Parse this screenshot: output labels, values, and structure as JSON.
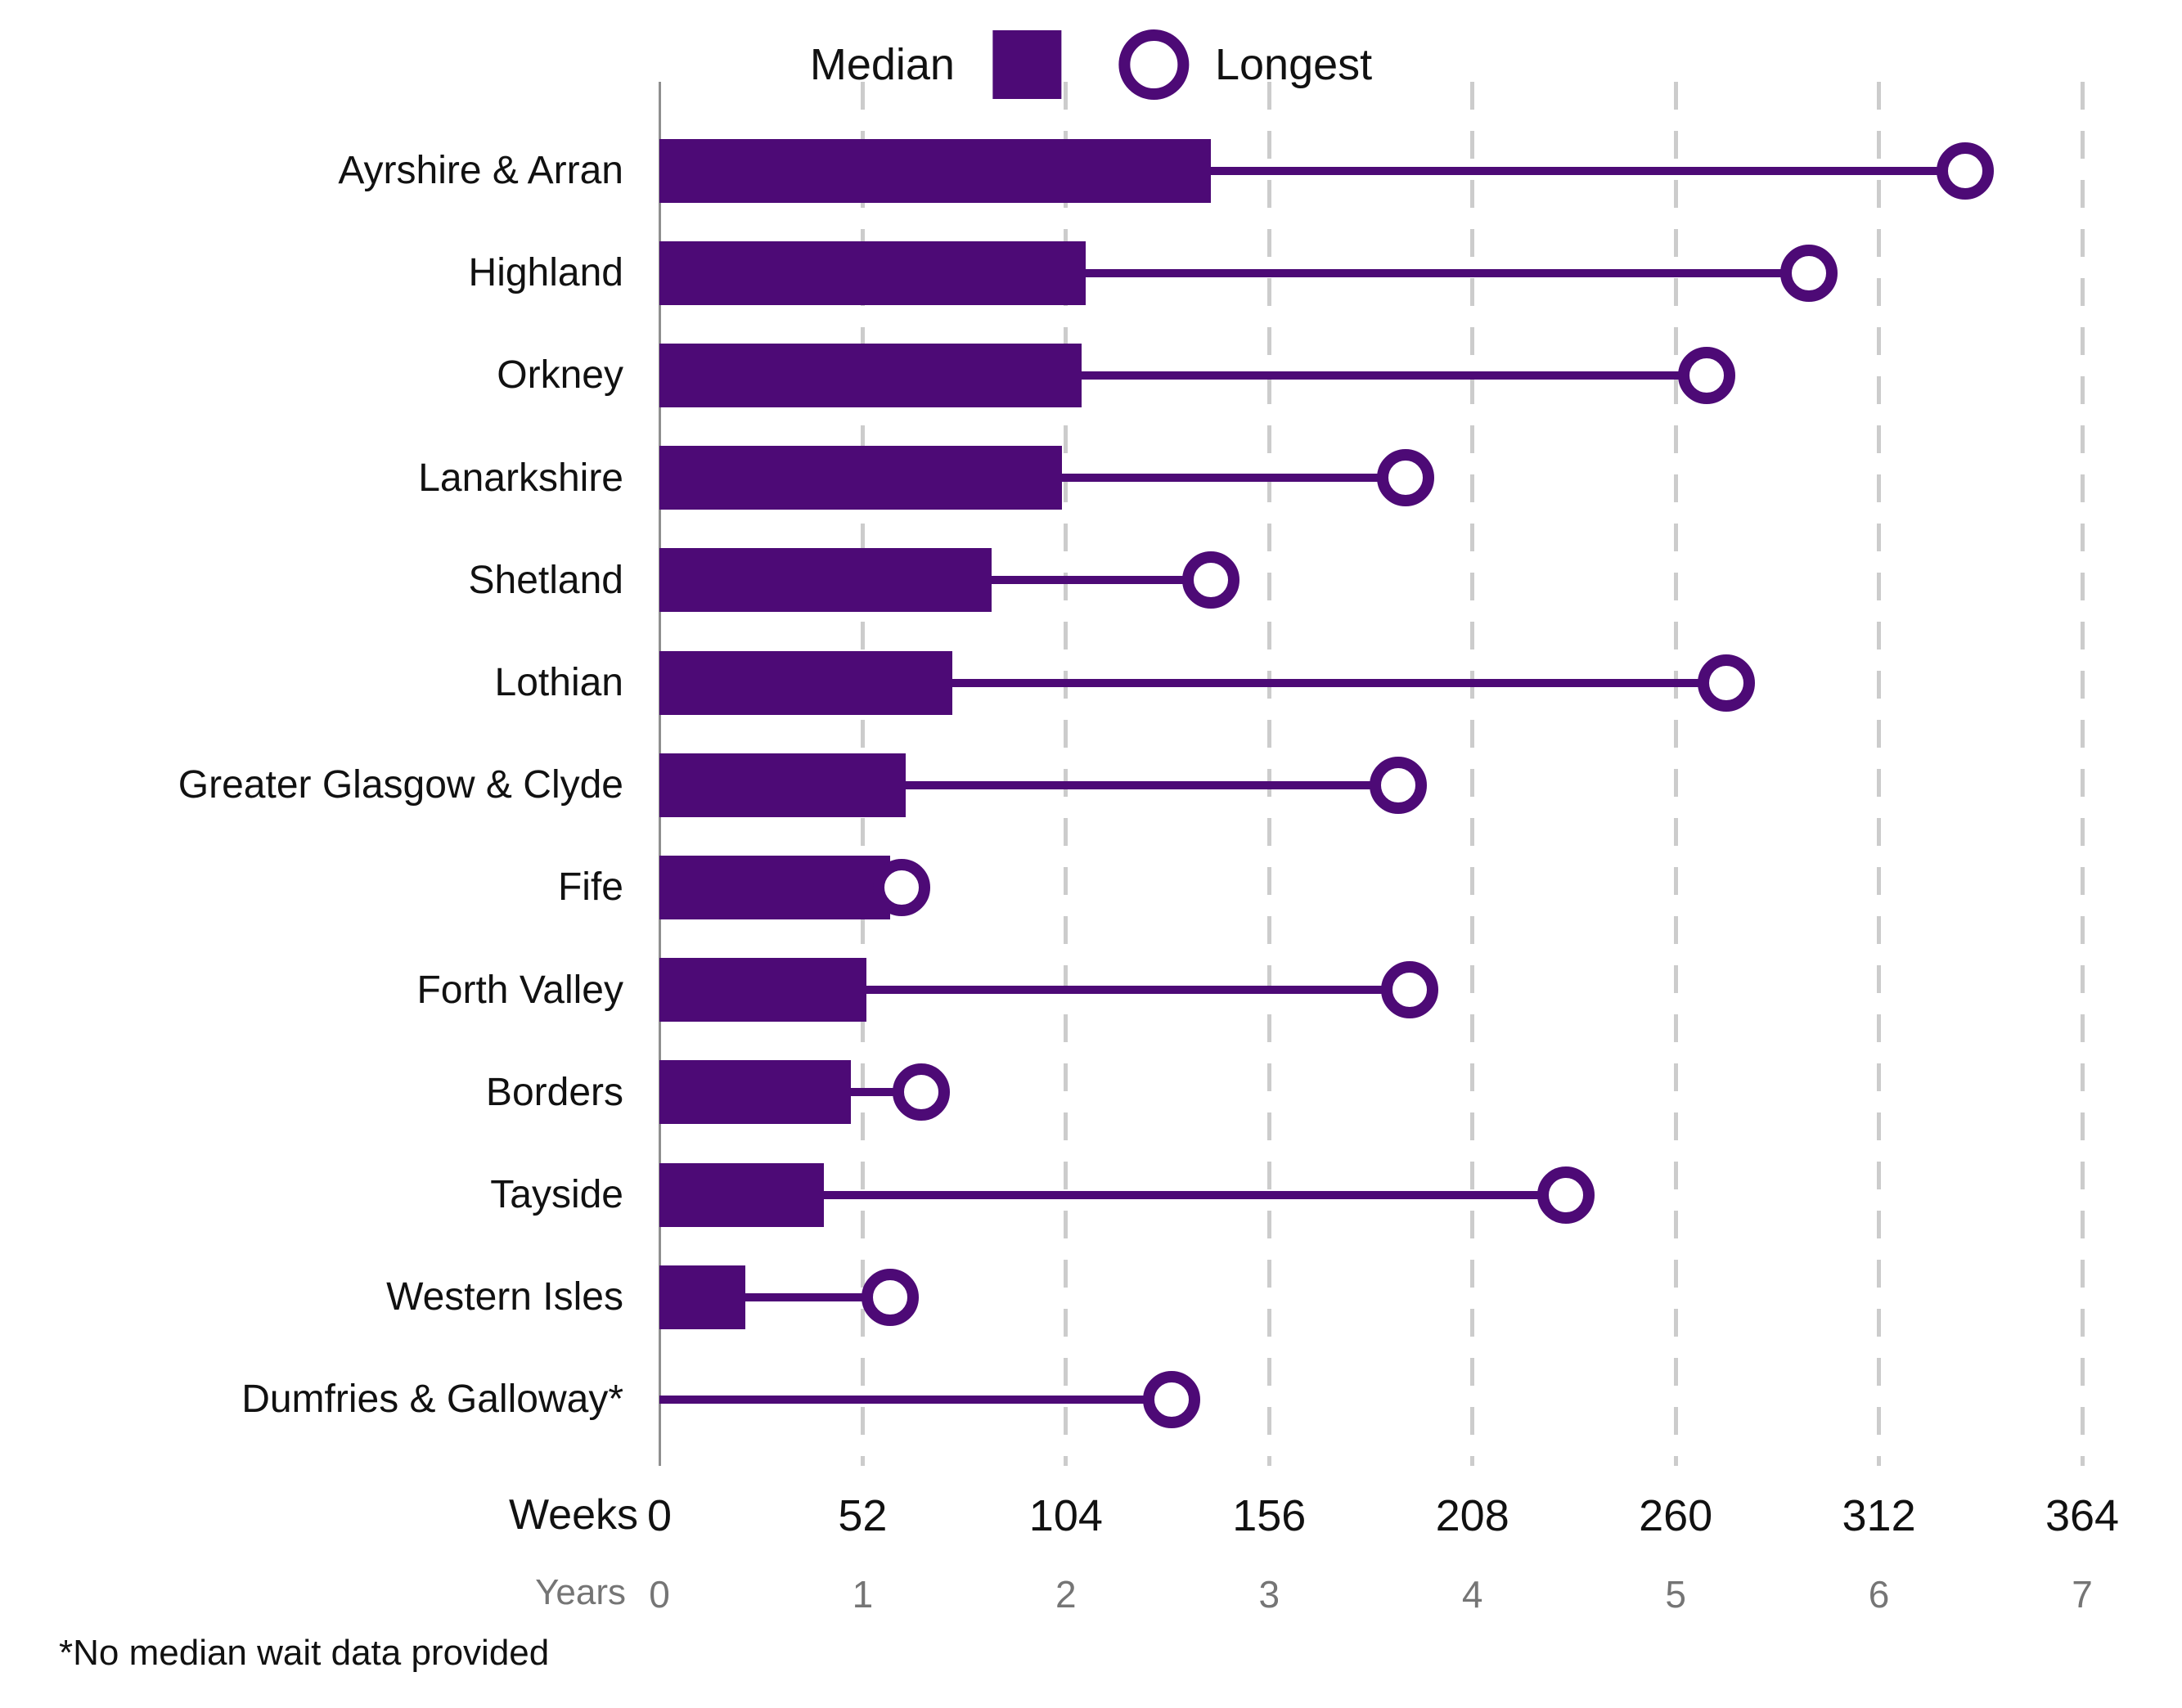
{
  "legend": {
    "median_label": "Median",
    "longest_label": "Longest"
  },
  "axes": {
    "weeks_label": "Weeks",
    "years_label": "Years"
  },
  "footnote": "*No median wait data provided",
  "colors": {
    "purple": "#4D0A76",
    "gridline": "#cccccc",
    "axis_line": "#8f8f8f",
    "text": "#111111",
    "muted_text": "#757575"
  },
  "chart_data": {
    "type": "bar",
    "subtype": "horizontal-bar-with-lollipop",
    "unit": "weeks",
    "xlim": [
      0,
      364
    ],
    "x_ticks_weeks": [
      0,
      52,
      104,
      156,
      208,
      260,
      312,
      364
    ],
    "x_ticks_years": [
      0,
      1,
      2,
      3,
      4,
      5,
      6,
      7
    ],
    "grid": true,
    "legend_position": "top",
    "categories": [
      "Ayrshire & Arran",
      "Highland",
      "Orkney",
      "Lanarkshire",
      "Shetland",
      "Lothian",
      "Greater Glasgow & Clyde",
      "Fife",
      "Forth Valley",
      "Borders",
      "Tayside",
      "Western Isles",
      "Dumfries & Galloway*"
    ],
    "series": [
      {
        "name": "Median",
        "marker": "bar",
        "values": [
          141,
          109,
          108,
          103,
          85,
          75,
          63,
          59,
          53,
          49,
          42,
          22,
          null
        ]
      },
      {
        "name": "Longest",
        "marker": "open-circle",
        "values": [
          334,
          294,
          268,
          191,
          141,
          273,
          189,
          62,
          192,
          67,
          232,
          59,
          131
        ]
      }
    ]
  }
}
